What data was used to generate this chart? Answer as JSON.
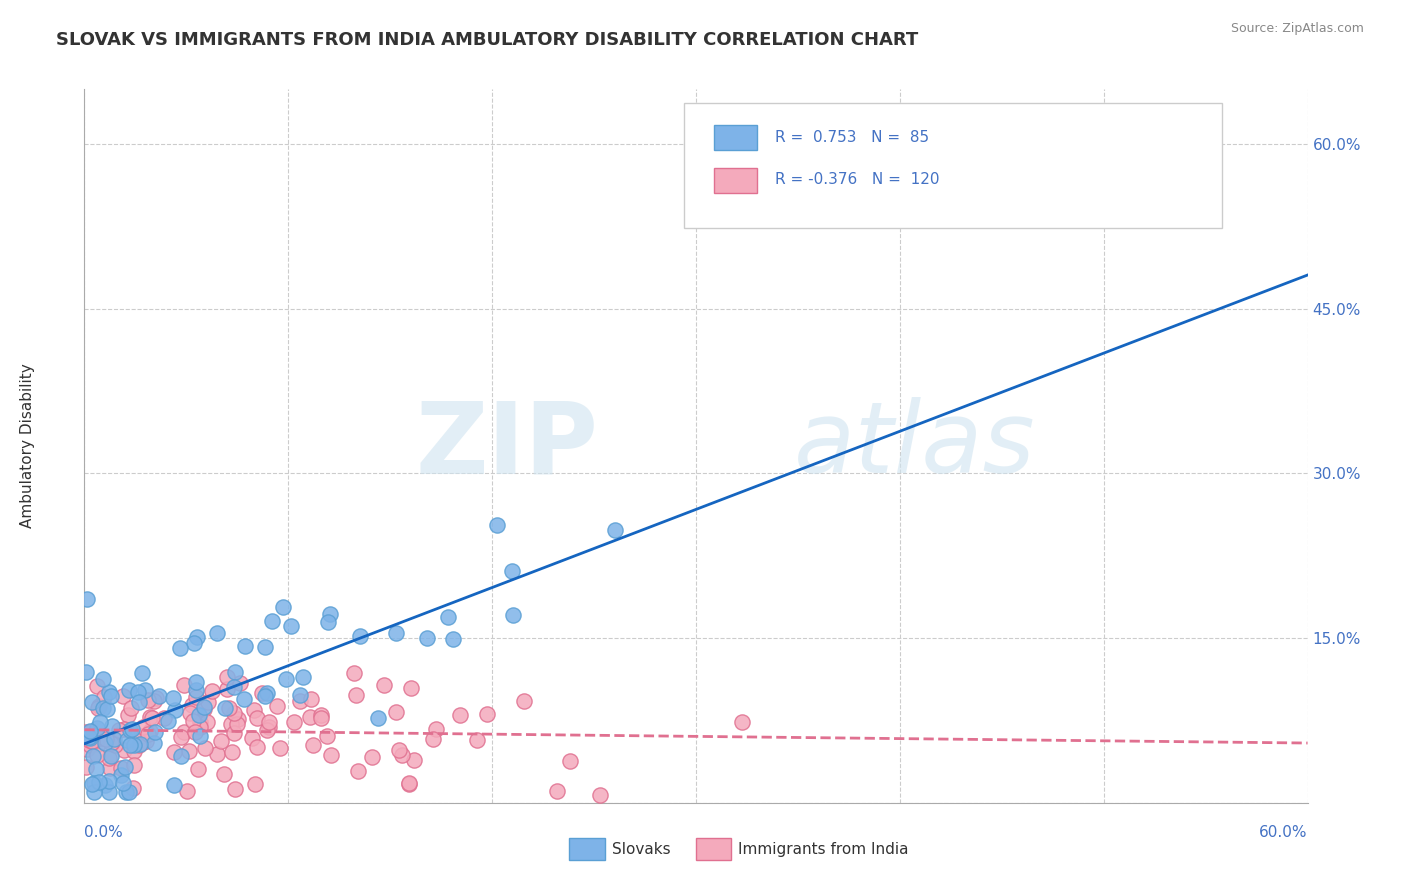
{
  "title": "SLOVAK VS IMMIGRANTS FROM INDIA AMBULATORY DISABILITY CORRELATION CHART",
  "source": "Source: ZipAtlas.com",
  "ylabel": "Ambulatory Disability",
  "x_min": 0.0,
  "x_max": 0.6,
  "y_min": 0.0,
  "y_max": 0.65,
  "yticks": [
    0.0,
    0.15,
    0.3,
    0.45,
    0.6
  ],
  "ytick_labels": [
    "",
    "15.0%",
    "30.0%",
    "45.0%",
    "60.0%"
  ],
  "series1_name": "Slovaks",
  "series1_R": 0.753,
  "series1_N": 85,
  "series1_color": "#7EB3E8",
  "series1_edge_color": "#5A9FD4",
  "series1_line_color": "#1565C0",
  "series2_name": "Immigrants from India",
  "series2_R": -0.376,
  "series2_N": 120,
  "series2_color": "#F4AABC",
  "series2_edge_color": "#E07090",
  "series2_line_color": "#E07090",
  "legend_R_color": "#4472C4",
  "watermark_zip": "ZIP",
  "watermark_atlas": "atlas",
  "background_color": "#FFFFFF",
  "grid_color": "#CCCCCC"
}
